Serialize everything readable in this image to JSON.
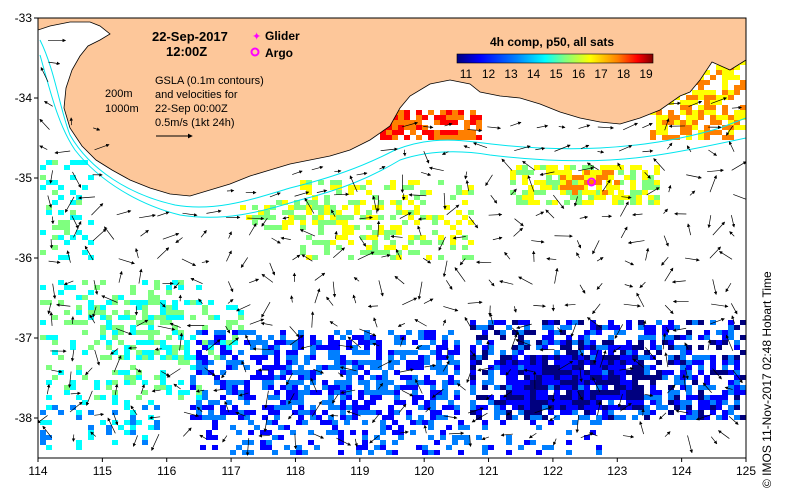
{
  "map": {
    "date_line": "22-Sep-2017",
    "time_line": "12:00Z",
    "legend": {
      "glider_label": "Glider",
      "argo_label": "Argo",
      "glider_color": "#ff00ff",
      "argo_color": "#ff00ff"
    },
    "colorbar": {
      "title": "4h comp, p50, all sats",
      "ticks": [
        "11",
        "12",
        "13",
        "14",
        "15",
        "16",
        "17",
        "18",
        "19"
      ],
      "colors": [
        "#00007f",
        "#0000ff",
        "#007fff",
        "#00ffff",
        "#7fff7f",
        "#ffff00",
        "#ff7f00",
        "#ff0000",
        "#7f0000"
      ]
    },
    "contour_key": {
      "label_200": "200m",
      "label_1000": "1000m",
      "contour_color": "#00e5ee"
    },
    "gsla_note": [
      "GSLA (0.1m contours)",
      "and velocities for",
      "22-Sep 00:00Z",
      "0.5m/s (1kt 24h)"
    ],
    "credit": "© IMOS 11-Nov-2017 02:48 Hobart Time",
    "land_color": "#fdc79a",
    "x_ticks": [
      "114",
      "115",
      "116",
      "117",
      "118",
      "119",
      "120",
      "121",
      "122",
      "123",
      "124",
      "125"
    ],
    "y_ticks": [
      "-33",
      "-34",
      "-35",
      "-36",
      "-37",
      "-38"
    ],
    "x_range": [
      114,
      125
    ],
    "y_range": [
      -38.5,
      -33
    ],
    "argo_position": [
      122.6,
      -35.05
    ]
  }
}
